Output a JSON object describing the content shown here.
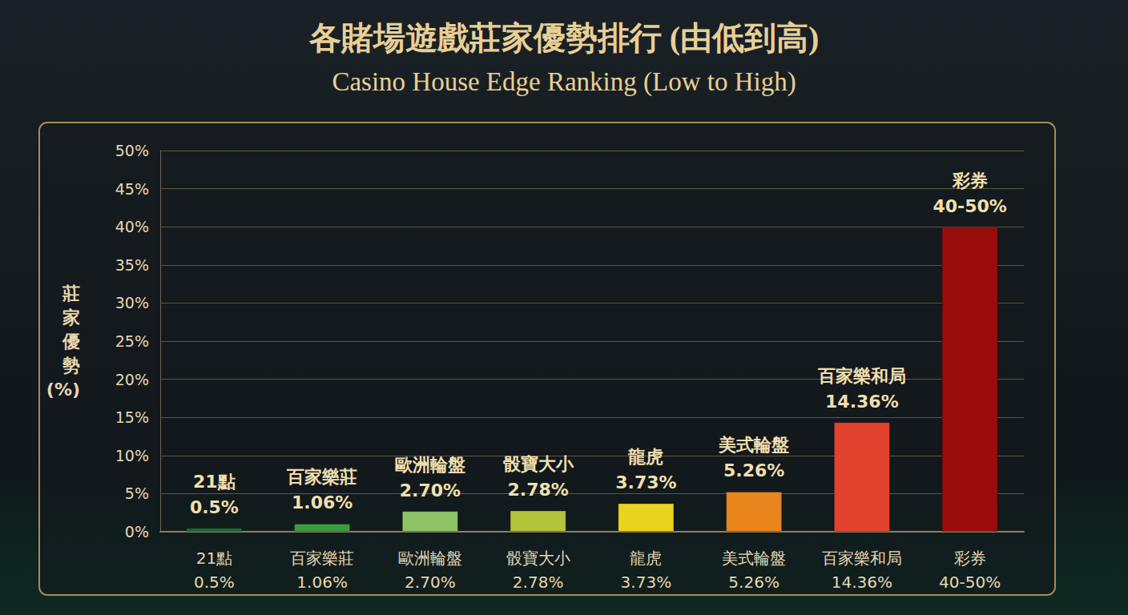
{
  "chart_data": {
    "type": "bar",
    "title": "各賭場遊戲莊家優勢排行 (由低到高)",
    "subtitle": "Casino House Edge Ranking (Low to High)",
    "y_label": "莊家優勢 (%)",
    "categories": [
      "21點",
      "百家樂莊",
      "歐洲輪盤",
      "骰寶大小",
      "龍虎",
      "美式輪盤",
      "百家樂和局",
      "彩券"
    ],
    "values": [
      0.5,
      1.06,
      2.7,
      2.78,
      3.73,
      5.26,
      14.36,
      40
    ],
    "value_labels": [
      "0.5%",
      "1.06%",
      "2.70%",
      "2.78%",
      "3.73%",
      "5.26%",
      "14.36%",
      "40-50%"
    ],
    "colors": [
      "#1b6a36",
      "#3a9b3f",
      "#8fc466",
      "#b4c43a",
      "#e9d41f",
      "#e8851d",
      "#e2432f",
      "#9a0c0c"
    ],
    "ylim": [
      0,
      50
    ],
    "yticks": [
      {
        "value": 0,
        "label": "0%"
      },
      {
        "value": 5,
        "label": "5%"
      },
      {
        "value": 10,
        "label": "10%"
      },
      {
        "value": 15,
        "label": "15%"
      },
      {
        "value": 20,
        "label": "20%"
      },
      {
        "value": 25,
        "label": "25%"
      },
      {
        "value": 30,
        "label": "30%"
      },
      {
        "value": 35,
        "label": "35%"
      },
      {
        "value": 40,
        "label": "40%"
      },
      {
        "value": 45,
        "label": "45%"
      },
      {
        "value": 50,
        "label": "50%"
      }
    ],
    "grid": true,
    "data_labels": true
  }
}
